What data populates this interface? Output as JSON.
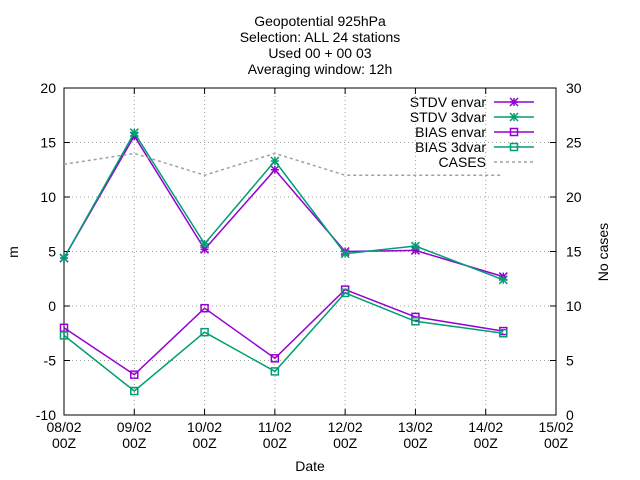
{
  "chart_data": {
    "type": "line",
    "title_lines": [
      "Geopotential 925hPa",
      "Selection: ALL      24 stations",
      "Used 00 + 00 03",
      "Averaging window: 12h"
    ],
    "xlabel": "Date",
    "ylabel": "m",
    "y2label": "No cases",
    "x_ticks": [
      {
        "line1": "08/02",
        "line2": "00Z"
      },
      {
        "line1": "09/02",
        "line2": "00Z"
      },
      {
        "line1": "10/02",
        "line2": "00Z"
      },
      {
        "line1": "11/02",
        "line2": "00Z"
      },
      {
        "line1": "12/02",
        "line2": "00Z"
      },
      {
        "line1": "13/02",
        "line2": "00Z"
      },
      {
        "line1": "14/02",
        "line2": "00Z"
      },
      {
        "line1": "15/02",
        "line2": "00Z"
      }
    ],
    "x": [
      "08/02 00Z",
      "09/02 00Z",
      "10/02 00Z",
      "11/02 00Z",
      "12/02 00Z",
      "13/02 00Z",
      "14/02 06Z"
    ],
    "xlim": [
      "08/02 00Z",
      "15/02 00Z"
    ],
    "ylim": [
      -10,
      20
    ],
    "y_ticks": [
      -10,
      -5,
      0,
      5,
      10,
      15,
      20
    ],
    "y2lim": [
      0,
      30
    ],
    "y2_ticks": [
      0,
      5,
      10,
      15,
      20,
      25,
      30
    ],
    "grid": true,
    "legend_position": "top-right",
    "series": [
      {
        "name": "STDV envar",
        "axis": "y1",
        "color": "#9400d3",
        "marker": "star",
        "dash": false,
        "values": [
          4.4,
          15.6,
          5.2,
          12.5,
          5.0,
          5.1,
          2.7
        ]
      },
      {
        "name": "STDV 3dvar",
        "axis": "y1",
        "color": "#009e73",
        "marker": "star",
        "dash": false,
        "values": [
          4.4,
          15.9,
          5.7,
          13.3,
          4.8,
          5.5,
          2.4
        ]
      },
      {
        "name": "BIAS envar",
        "axis": "y1",
        "color": "#9400d3",
        "marker": "square",
        "dash": false,
        "values": [
          -2.0,
          -6.3,
          -0.2,
          -4.8,
          1.5,
          -1.0,
          -2.3
        ]
      },
      {
        "name": "BIAS 3dvar",
        "axis": "y1",
        "color": "#009e73",
        "marker": "square",
        "dash": false,
        "values": [
          -2.7,
          -7.8,
          -2.4,
          -6.0,
          1.2,
          -1.4,
          -2.5
        ]
      },
      {
        "name": "CASES",
        "axis": "y2",
        "color": "#a0a0a0",
        "marker": "none",
        "dash": true,
        "values": [
          23,
          24,
          22,
          24,
          22,
          22,
          22
        ]
      }
    ]
  }
}
